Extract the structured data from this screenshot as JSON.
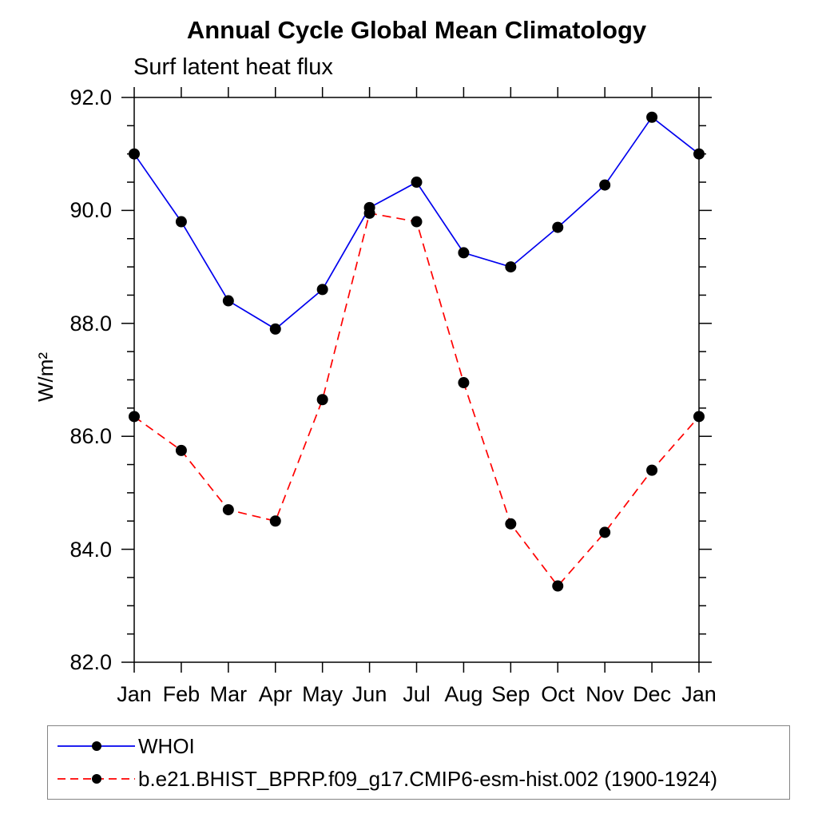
{
  "chart_data": {
    "type": "line",
    "title": "Annual Cycle Global Mean Climatology",
    "subtitle": "Surf latent heat flux",
    "ylabel": "W/m²",
    "xlabel": "",
    "categories": [
      "Jan",
      "Feb",
      "Mar",
      "Apr",
      "May",
      "Jun",
      "Jul",
      "Aug",
      "Sep",
      "Oct",
      "Nov",
      "Dec",
      "Jan"
    ],
    "series": [
      {
        "name": "WHOI",
        "color": "#0000ee",
        "line_style": "solid",
        "marker": "filled-circle",
        "marker_color": "#000000",
        "values": [
          91.0,
          89.8,
          88.4,
          87.9,
          88.6,
          90.05,
          90.5,
          89.25,
          89.0,
          89.7,
          90.45,
          91.65,
          91.0
        ]
      },
      {
        "name": "b.e21.BHIST_BPRP.f09_g17.CMIP6-esm-hist.002 (1900-1924)",
        "color": "#ff0000",
        "line_style": "dashed",
        "marker": "filled-circle",
        "marker_color": "#000000",
        "values": [
          86.35,
          85.75,
          84.7,
          84.5,
          86.65,
          89.95,
          89.8,
          86.95,
          84.45,
          83.35,
          84.3,
          85.4,
          86.35
        ]
      }
    ],
    "ylim": [
      82,
      92
    ],
    "ytick_labels": [
      "82.0",
      "84.0",
      "86.0",
      "88.0",
      "90.0",
      "92.0"
    ],
    "ytick_step": 2,
    "ytick_minor_step": 0.5,
    "grid": false,
    "frame": "box-with-outward-ticks",
    "legend_position": "bottom-left-box"
  }
}
